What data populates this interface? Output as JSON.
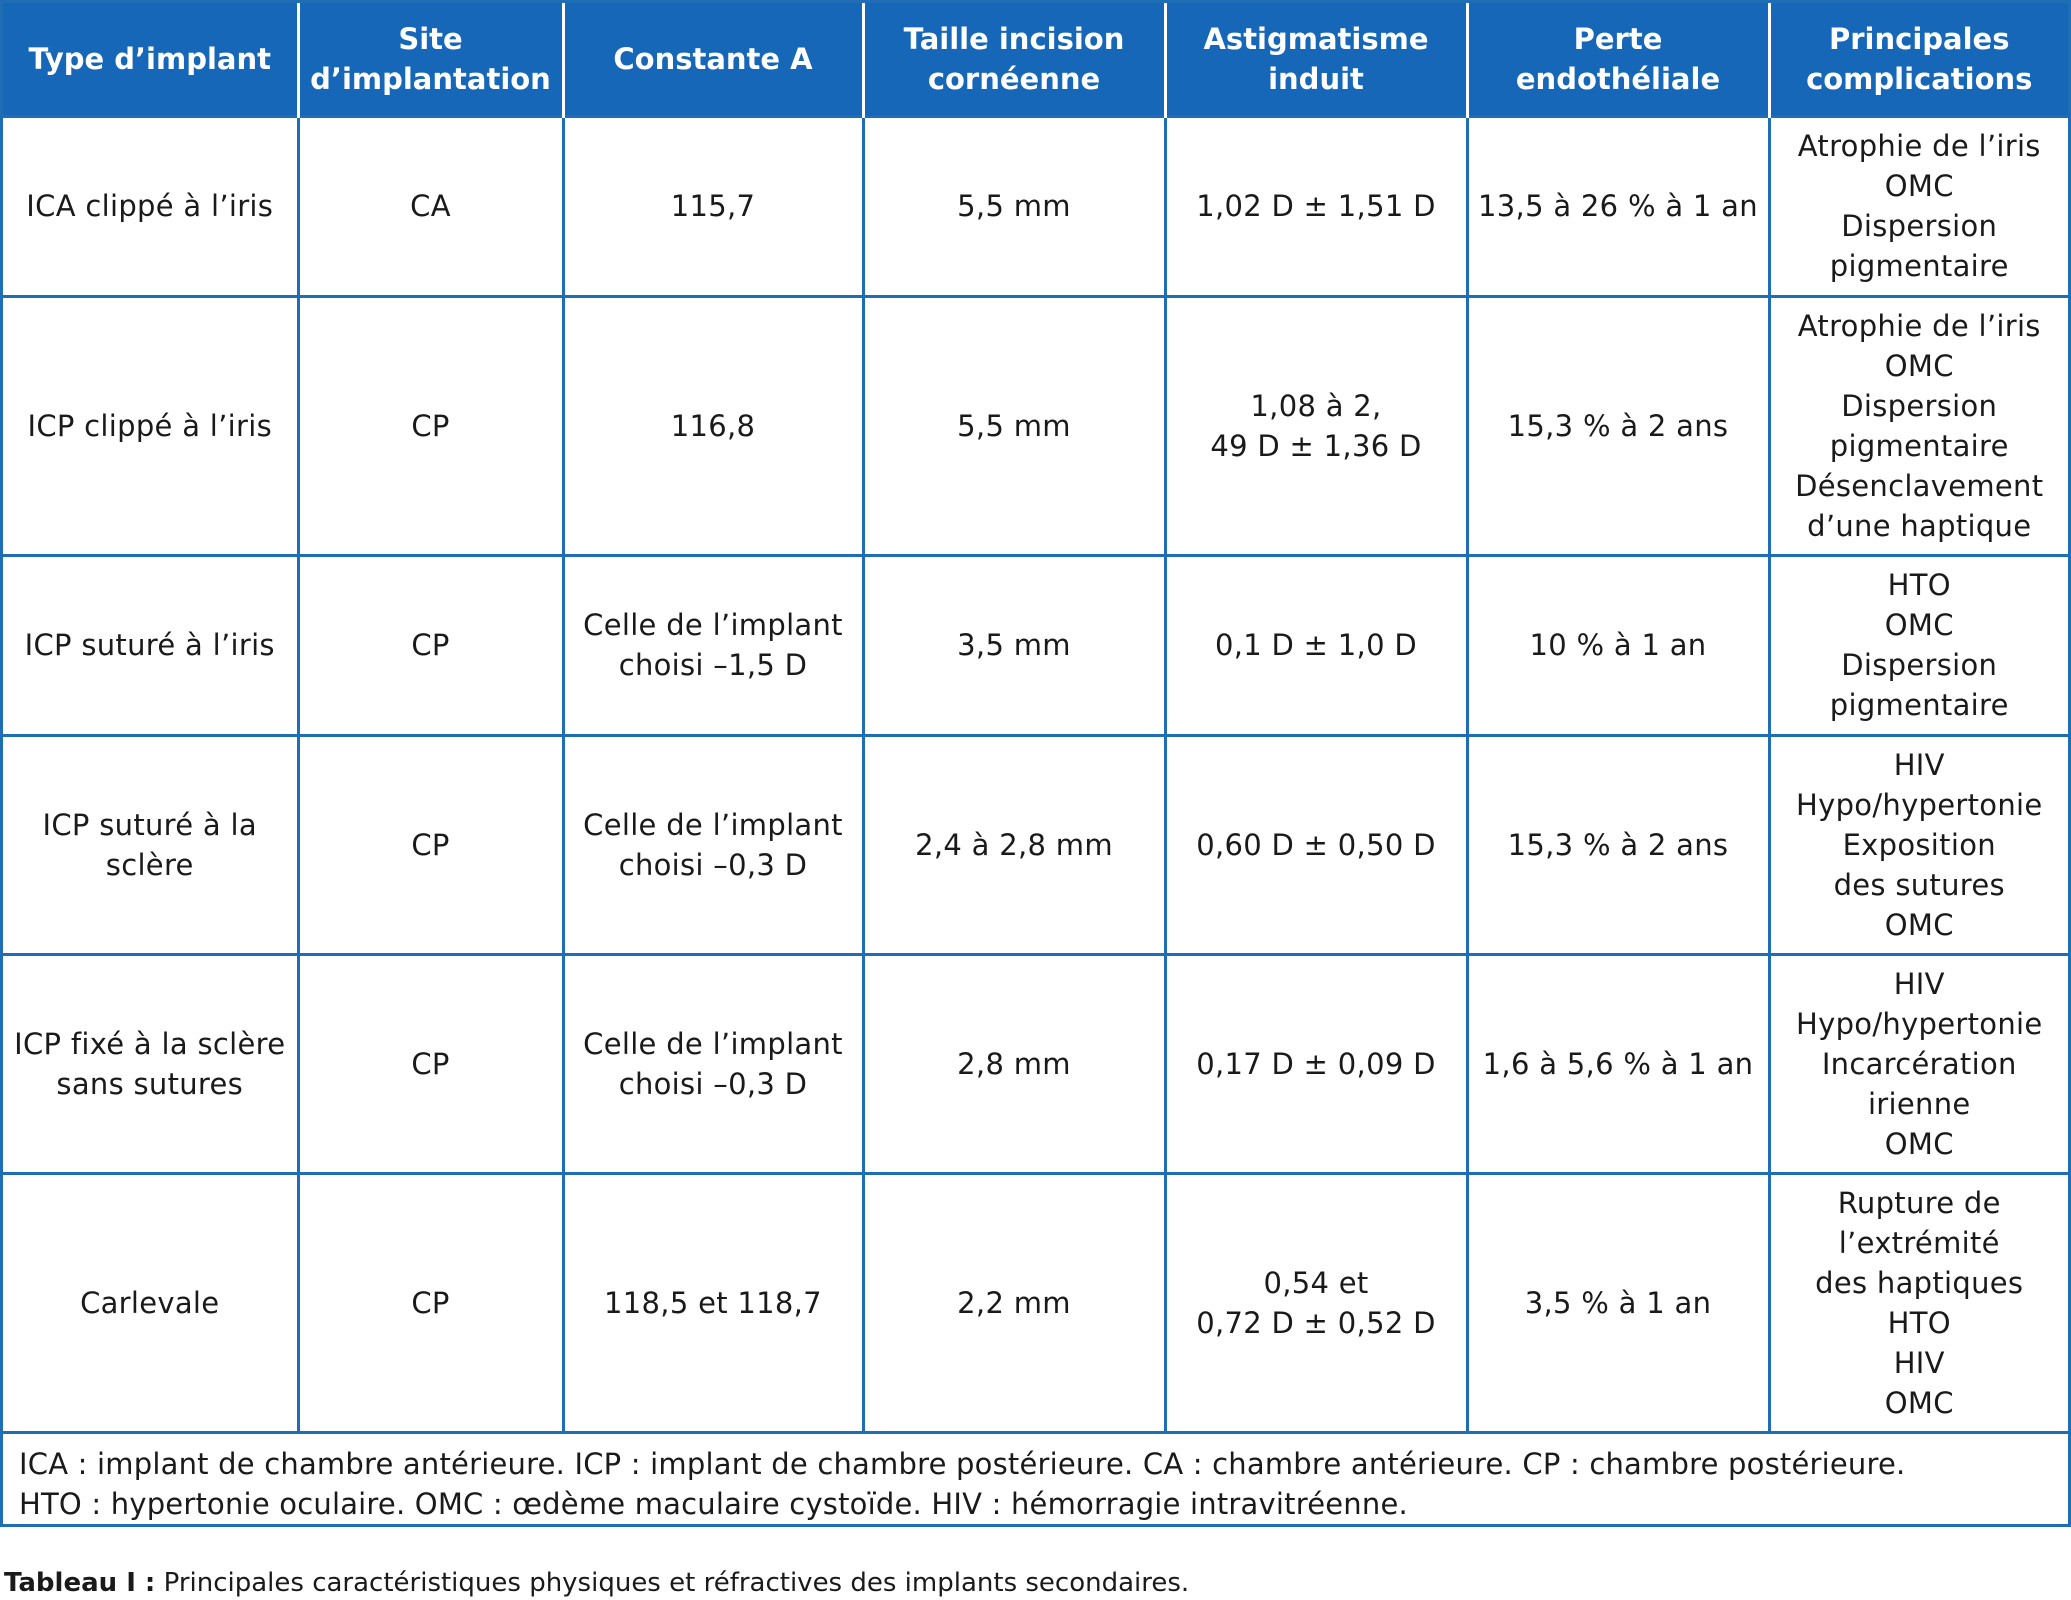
{
  "table": {
    "headers": [
      [
        "Type d’implant"
      ],
      [
        "Site",
        "d’implantation"
      ],
      [
        "Constante A"
      ],
      [
        "Taille incision",
        "cornéenne"
      ],
      [
        "Astigmatisme",
        "induit"
      ],
      [
        "Perte",
        "endothéliale"
      ],
      [
        "Principales",
        "complications"
      ]
    ],
    "rows": [
      [
        [
          "ICA clippé à l’iris"
        ],
        [
          "CA"
        ],
        [
          "115,7"
        ],
        [
          "5,5 mm"
        ],
        [
          "1,02 D ± 1,51 D"
        ],
        [
          "13,5 à 26 % à 1 an"
        ],
        [
          "Atrophie de l’iris",
          "OMC",
          "Dispersion",
          "pigmentaire"
        ]
      ],
      [
        [
          "ICP clippé à l’iris"
        ],
        [
          "CP"
        ],
        [
          "116,8"
        ],
        [
          "5,5 mm"
        ],
        [
          "1,08 à 2,",
          "49 D ± 1,36 D"
        ],
        [
          "15,3 % à 2 ans"
        ],
        [
          "Atrophie de l’iris",
          "OMC",
          "Dispersion",
          "pigmentaire",
          "Désenclavement",
          "d’une haptique"
        ]
      ],
      [
        [
          "ICP suturé à l’iris"
        ],
        [
          "CP"
        ],
        [
          "Celle de l’implant",
          "choisi –1,5 D"
        ],
        [
          "3,5 mm"
        ],
        [
          "0,1 D ± 1,0 D"
        ],
        [
          "10 % à 1 an"
        ],
        [
          "HTO",
          "OMC",
          "Dispersion",
          "pigmentaire"
        ]
      ],
      [
        [
          "ICP suturé à la",
          "sclère"
        ],
        [
          "CP"
        ],
        [
          "Celle de l’implant",
          "choisi –0,3 D"
        ],
        [
          "2,4 à 2,8 mm"
        ],
        [
          "0,60 D ± 0,50 D"
        ],
        [
          "15,3 % à 2 ans"
        ],
        [
          "HIV",
          "Hypo/hypertonie",
          "Exposition",
          "des sutures",
          "OMC"
        ]
      ],
      [
        [
          "ICP fixé à la sclère",
          "sans sutures"
        ],
        [
          "CP"
        ],
        [
          "Celle de l’implant",
          "choisi –0,3 D"
        ],
        [
          "2,8 mm"
        ],
        [
          "0,17 D ± 0,09 D"
        ],
        [
          "1,6 à 5,6 % à 1 an"
        ],
        [
          "HIV",
          "Hypo/hypertonie",
          "Incarcération",
          "irienne",
          "OMC"
        ]
      ],
      [
        [
          "Carlevale"
        ],
        [
          "CP"
        ],
        [
          "118,5 et 118,7"
        ],
        [
          "2,2 mm"
        ],
        [
          "0,54 et",
          "0,72 D ± 0,52 D"
        ],
        [
          "3,5 % à 1 an"
        ],
        [
          "Rupture de",
          "l’extrémité",
          "des haptiques",
          "HTO",
          "HIV",
          "OMC"
        ]
      ]
    ]
  },
  "footnote": {
    "line1": "ICA : implant de chambre antérieure. ICP : implant de chambre postérieure. CA : chambre antérieure. CP : chambre postérieure.",
    "line2": "HTO : hypertonie oculaire. OMC : œdème maculaire cystoïde. HIV : hémorragie intravitréenne."
  },
  "caption": {
    "label": "Tableau I :",
    "text": " Principales caractéristiques physiques et réfractives des implants secondaires."
  },
  "colors": {
    "header_bg": "#1667b7",
    "border": "#1f6eb5",
    "header_text": "#ffffff"
  }
}
